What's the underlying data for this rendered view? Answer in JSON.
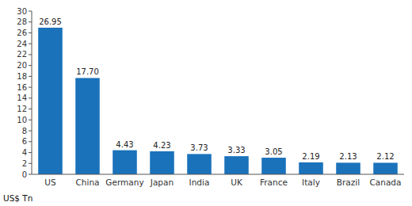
{
  "chart_data": {
    "type": "bar",
    "categories": [
      "US",
      "China",
      "Germany",
      "Japan",
      "India",
      "UK",
      "France",
      "Italy",
      "Brazil",
      "Canada"
    ],
    "values": [
      26.95,
      17.7,
      4.43,
      4.23,
      3.73,
      3.33,
      3.05,
      2.19,
      2.13,
      2.12
    ],
    "value_labels": [
      "26.95",
      "17.70",
      "4.43",
      "4.23",
      "3.73",
      "3.33",
      "3.05",
      "2.19",
      "2.13",
      "2.12"
    ],
    "data_labels": true,
    "color": "#1a72bb",
    "ylabel": "US$ Tn",
    "ylim": [
      0,
      30
    ],
    "yticks": [
      0,
      2,
      4,
      6,
      8,
      10,
      12,
      14,
      16,
      18,
      20,
      22,
      24,
      26,
      28,
      30
    ],
    "grid": false
  }
}
